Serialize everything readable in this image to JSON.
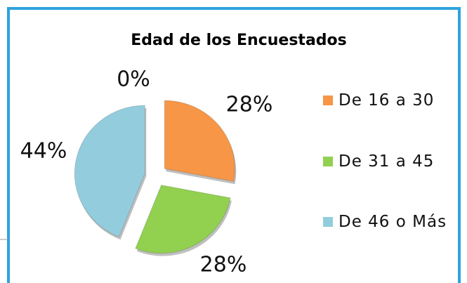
{
  "chart_data": {
    "type": "pie",
    "title": "Edad de los Encuestados",
    "categories": [
      "De 16 a 30",
      "De 31 a 45",
      "De 46 o Más",
      null
    ],
    "values": [
      28,
      28,
      44,
      0
    ],
    "value_labels": [
      "28%",
      "28%",
      "44%",
      "0%"
    ],
    "colors": [
      "#f79646",
      "#92d050",
      "#93cddd",
      "#4f81bd"
    ]
  }
}
